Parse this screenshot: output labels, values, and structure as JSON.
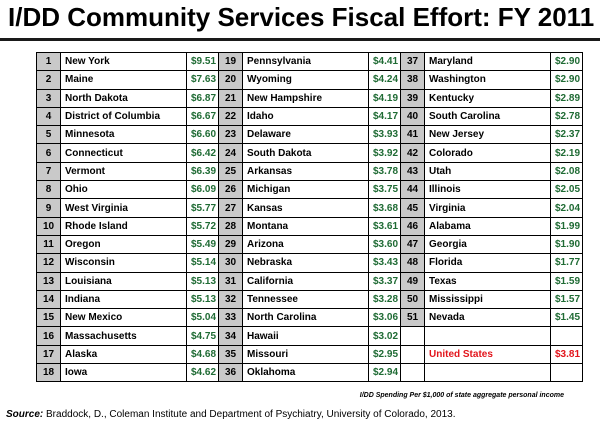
{
  "title": "I/DD Community Services Fiscal Effort: FY 2011",
  "rows": [
    [
      {
        "rank": "1",
        "state": "New York",
        "value": "$9.51"
      },
      {
        "rank": "19",
        "state": "Pennsylvania",
        "value": "$4.41"
      },
      {
        "rank": "37",
        "state": "Maryland",
        "value": "$2.90"
      }
    ],
    [
      {
        "rank": "2",
        "state": "Maine",
        "value": "$7.63"
      },
      {
        "rank": "20",
        "state": "Wyoming",
        "value": "$4.24"
      },
      {
        "rank": "38",
        "state": "Washington",
        "value": "$2.90"
      }
    ],
    [
      {
        "rank": "3",
        "state": "North Dakota",
        "value": "$6.87"
      },
      {
        "rank": "21",
        "state": "New Hampshire",
        "value": "$4.19"
      },
      {
        "rank": "39",
        "state": "Kentucky",
        "value": "$2.89"
      }
    ],
    [
      {
        "rank": "4",
        "state": "District of Columbia",
        "value": "$6.67"
      },
      {
        "rank": "22",
        "state": "Idaho",
        "value": "$4.17"
      },
      {
        "rank": "40",
        "state": "South Carolina",
        "value": "$2.78"
      }
    ],
    [
      {
        "rank": "5",
        "state": "Minnesota",
        "value": "$6.60"
      },
      {
        "rank": "23",
        "state": "Delaware",
        "value": "$3.93"
      },
      {
        "rank": "41",
        "state": "New Jersey",
        "value": "$2.37"
      }
    ],
    [
      {
        "rank": "6",
        "state": "Connecticut",
        "value": "$6.42"
      },
      {
        "rank": "24",
        "state": "South Dakota",
        "value": "$3.92"
      },
      {
        "rank": "42",
        "state": "Colorado",
        "value": "$2.19"
      }
    ],
    [
      {
        "rank": "7",
        "state": "Vermont",
        "value": "$6.39"
      },
      {
        "rank": "25",
        "state": "Arkansas",
        "value": "$3.78"
      },
      {
        "rank": "43",
        "state": "Utah",
        "value": "$2.08"
      }
    ],
    [
      {
        "rank": "8",
        "state": "Ohio",
        "value": "$6.09"
      },
      {
        "rank": "26",
        "state": "Michigan",
        "value": "$3.75"
      },
      {
        "rank": "44",
        "state": "Illinois",
        "value": "$2.05"
      }
    ],
    [
      {
        "rank": "9",
        "state": "West Virginia",
        "value": "$5.77"
      },
      {
        "rank": "27",
        "state": "Kansas",
        "value": "$3.68"
      },
      {
        "rank": "45",
        "state": "Virginia",
        "value": "$2.04"
      }
    ],
    [
      {
        "rank": "10",
        "state": "Rhode Island",
        "value": "$5.72"
      },
      {
        "rank": "28",
        "state": "Montana",
        "value": "$3.61"
      },
      {
        "rank": "46",
        "state": "Alabama",
        "value": "$1.99"
      }
    ],
    [
      {
        "rank": "11",
        "state": "Oregon",
        "value": "$5.49"
      },
      {
        "rank": "29",
        "state": "Arizona",
        "value": "$3.60"
      },
      {
        "rank": "47",
        "state": "Georgia",
        "value": "$1.90"
      }
    ],
    [
      {
        "rank": "12",
        "state": "Wisconsin",
        "value": "$5.14"
      },
      {
        "rank": "30",
        "state": "Nebraska",
        "value": "$3.43"
      },
      {
        "rank": "48",
        "state": "Florida",
        "value": "$1.77"
      }
    ],
    [
      {
        "rank": "13",
        "state": "Louisiana",
        "value": "$5.13"
      },
      {
        "rank": "31",
        "state": "California",
        "value": "$3.37"
      },
      {
        "rank": "49",
        "state": "Texas",
        "value": "$1.59"
      }
    ],
    [
      {
        "rank": "14",
        "state": "Indiana",
        "value": "$5.13"
      },
      {
        "rank": "32",
        "state": "Tennessee",
        "value": "$3.28"
      },
      {
        "rank": "50",
        "state": "Mississippi",
        "value": "$1.57"
      }
    ],
    [
      {
        "rank": "15",
        "state": "New Mexico",
        "value": "$5.04"
      },
      {
        "rank": "33",
        "state": "North Carolina",
        "value": "$3.06"
      },
      {
        "rank": "51",
        "state": "Nevada",
        "value": "$1.45"
      }
    ],
    [
      {
        "rank": "16",
        "state": "Massachusetts",
        "value": "$4.75"
      },
      {
        "rank": "34",
        "state": "Hawaii",
        "value": "$3.02"
      },
      null
    ],
    [
      {
        "rank": "17",
        "state": "Alaska",
        "value": "$4.68"
      },
      {
        "rank": "35",
        "state": "Missouri",
        "value": "$2.95"
      },
      {
        "rank": "",
        "state": "United States",
        "value": "$3.81",
        "highlight": true
      }
    ],
    [
      {
        "rank": "18",
        "state": "Iowa",
        "value": "$4.62"
      },
      {
        "rank": "36",
        "state": "Oklahoma",
        "value": "$2.94"
      },
      null
    ]
  ],
  "footnote": "I/DD Spending Per $1,000 of state aggregate personal income",
  "source": {
    "label": "Source:",
    "text": " Braddock, D., Coleman Institute and Department of Psychiatry, University of Colorado, 2013."
  },
  "colors": {
    "rank_bg": "#c9c9c9",
    "value_text": "#1f6b34",
    "us_highlight": "#e2141b"
  }
}
